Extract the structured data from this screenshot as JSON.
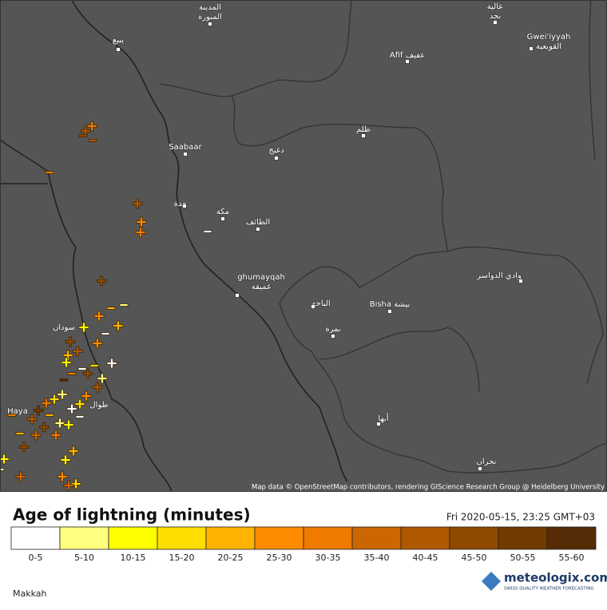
{
  "map": {
    "places": [
      {
        "lines": [
          "المدينة",
          "المنورة"
        ]
      },
      {
        "lines": [
          "ينبع"
        ]
      },
      {
        "lines": [
          "عالية",
          "نجد"
        ]
      },
      {
        "lines": [
          "Gwei'iyyah",
          "القويعية"
        ]
      },
      {
        "lines": [
          "Afif عفيف"
        ]
      },
      {
        "lines": [
          "ظلم"
        ]
      },
      {
        "lines": [
          "Saabaar"
        ]
      },
      {
        "lines": [
          "دغبج"
        ]
      },
      {
        "lines": [
          "جدة"
        ]
      },
      {
        "lines": [
          "مكة"
        ]
      },
      {
        "lines": [
          "الطائف"
        ]
      },
      {
        "lines": [
          "ghumayqah",
          "غميقة"
        ]
      },
      {
        "lines": [
          "وادي الدواسر"
        ]
      },
      {
        "lines": [
          "الباحة"
        ]
      },
      {
        "lines": [
          "Bisha بيشة"
        ]
      },
      {
        "lines": [
          "سودان"
        ]
      },
      {
        "lines": [
          "نمرة"
        ]
      },
      {
        "lines": [
          "Haya"
        ]
      },
      {
        "lines": [
          "طوال"
        ]
      },
      {
        "lines": [
          "أبها"
        ]
      },
      {
        "lines": [
          "نجران"
        ]
      }
    ],
    "attribution": "Map data © OpenStreetMap contributors, rendering GIScience Research Group @ Heidelberg University"
  },
  "legend": {
    "title": "Age of lightning (minutes)",
    "timestamp": "Fri 2020-05-15, 23:25 GMT+03",
    "items": [
      {
        "label": "0-5",
        "color": "#ffffff"
      },
      {
        "label": "5-10",
        "color": "#ffff80"
      },
      {
        "label": "10-15",
        "color": "#ffff00"
      },
      {
        "label": "15-20",
        "color": "#ffdd00"
      },
      {
        "label": "20-25",
        "color": "#ffb300"
      },
      {
        "label": "25-30",
        "color": "#ff8c00"
      },
      {
        "label": "30-35",
        "color": "#ee7a00"
      },
      {
        "label": "35-40",
        "color": "#cc6600"
      },
      {
        "label": "40-45",
        "color": "#b05800"
      },
      {
        "label": "45-50",
        "color": "#8f4a00"
      },
      {
        "label": "50-55",
        "color": "#703a00"
      },
      {
        "label": "55-60",
        "color": "#552c05"
      }
    ]
  },
  "footer": {
    "region": "Makkah",
    "logo": "meteologix.com",
    "tagline": "SWISS QUALITY WEATHER FORECASTING"
  }
}
